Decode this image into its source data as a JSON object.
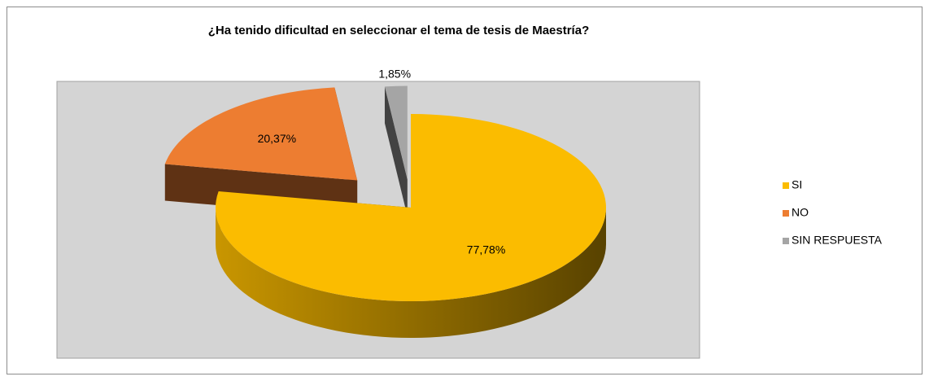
{
  "chart_data": {
    "type": "pie",
    "title": "¿Ha tenido dificultad en seleccionar el tema de tesis de Maestría?",
    "categories": [
      "SI",
      "NO",
      "SIN RESPUESTA"
    ],
    "values": [
      77.78,
      20.37,
      1.85
    ],
    "value_labels": [
      "77,78%",
      "20,37%",
      "1,85%"
    ],
    "colors": [
      "#fbbc00",
      "#ed7d31",
      "#a5a5a5"
    ],
    "legend": "right"
  }
}
